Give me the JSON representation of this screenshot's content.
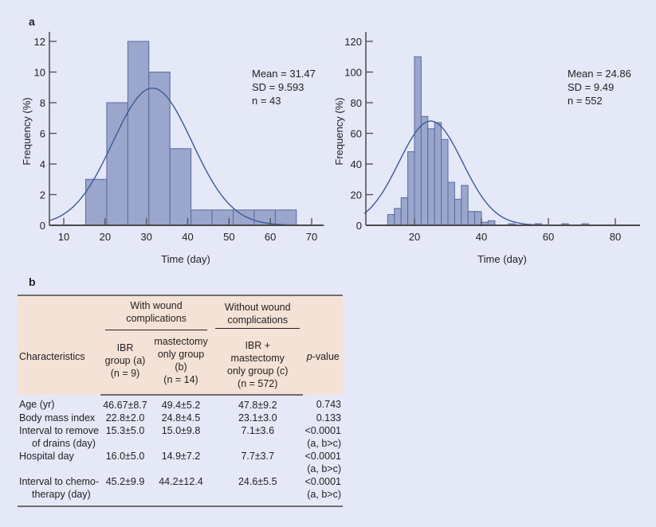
{
  "panel_a_label": "a",
  "panel_b_label": "b",
  "chart_data": [
    {
      "type": "bar",
      "subtype": "histogram",
      "xlabel": "Time (day)",
      "ylabel": "Frequency (%)",
      "xlim": [
        6.5,
        73
      ],
      "ylim": [
        0,
        12.6
      ],
      "xticks": [
        10,
        20,
        30,
        40,
        50,
        60,
        70
      ],
      "yticks": [
        0,
        2,
        4,
        6,
        8,
        10,
        12
      ],
      "bin_edges": [
        15.3,
        20.4,
        25.5,
        30.6,
        35.7,
        40.8,
        45.9,
        51.0,
        56.1,
        61.2,
        66.3
      ],
      "values": [
        3,
        8,
        12,
        10,
        5,
        1,
        1,
        1,
        1,
        1
      ],
      "stats": [
        "Mean = 31.47",
        "SD = 9.593",
        "n = 43"
      ],
      "normal_curve": {
        "mean": 31.47,
        "sd": 9.593,
        "peak": 8.95
      },
      "colors": {
        "bar": "#9ba6cc",
        "bar_edge": "#5a6aa0",
        "curve": "#3d5a98"
      }
    },
    {
      "type": "bar",
      "subtype": "histogram",
      "xlabel": "Time (day)",
      "ylabel": "Frequency (%)",
      "xlim": [
        5,
        87
      ],
      "ylim": [
        0,
        125
      ],
      "xticks": [
        20,
        40,
        60,
        80
      ],
      "yticks": [
        0,
        20,
        40,
        60,
        80,
        100,
        120
      ],
      "bin_width": 2,
      "bin_starts": [
        12,
        14,
        16,
        18,
        20,
        22,
        24,
        26,
        28,
        30,
        32,
        34,
        36,
        38,
        40,
        42,
        48,
        56,
        64,
        70
      ],
      "values": [
        7,
        11,
        18,
        48,
        110,
        71,
        63,
        67,
        56,
        28,
        17,
        26,
        9,
        9,
        2,
        3,
        1,
        1,
        1,
        1
      ],
      "stats": [
        "Mean = 24.86",
        "SD = 9.49",
        "n = 552"
      ],
      "normal_curve": {
        "mean": 24.86,
        "sd": 9.49,
        "peak": 68
      },
      "colors": {
        "bar": "#9ba6cc",
        "bar_edge": "#5a6aa0",
        "curve": "#3d5a98"
      }
    }
  ],
  "table": {
    "header": {
      "characteristics": "Characteristics",
      "with_group": "With wound complications",
      "without_group": "Without wound complications",
      "col_a": [
        "IBR",
        "group (a)",
        "(n = 9)"
      ],
      "col_b": [
        "mastectomy",
        "only group (b)",
        "(n = 14)"
      ],
      "col_c": [
        "IBR +",
        "mastectomy",
        "only group (c)",
        "(n = 572)"
      ],
      "pvalue_italic": "p",
      "pvalue_rest": "-value"
    },
    "rows": [
      {
        "label": [
          "Age (yr)"
        ],
        "a": "46.67±8.7",
        "b": "49.4±5.2",
        "c": "47.8±9.2",
        "p": [
          "0.743"
        ]
      },
      {
        "label": [
          "Body mass index"
        ],
        "a": "22.8±2.0",
        "b": "24.8±4.5",
        "c": "23.1±3.0",
        "p": [
          "0.133"
        ]
      },
      {
        "label": [
          "Interval to remove",
          "of drains (day)"
        ],
        "a": "15.3±5.0",
        "b": "15.0±9.8",
        "c": "7.1±3.6",
        "p": [
          "<0.0001",
          "(a, b>c)"
        ]
      },
      {
        "label": [
          "Hospital day"
        ],
        "a": "16.0±5.0",
        "b": "14.9±7.2",
        "c": "7.7±3.7",
        "p": [
          "<0.0001",
          "(a, b>c)"
        ]
      },
      {
        "label": [
          "Interval to chemo-",
          "therapy (day)"
        ],
        "a": "45.2±9.9",
        "b": "44.2±12.4",
        "c": "24.6±5.5",
        "p": [
          "<0.0001",
          "(a, b>c)"
        ]
      }
    ]
  }
}
